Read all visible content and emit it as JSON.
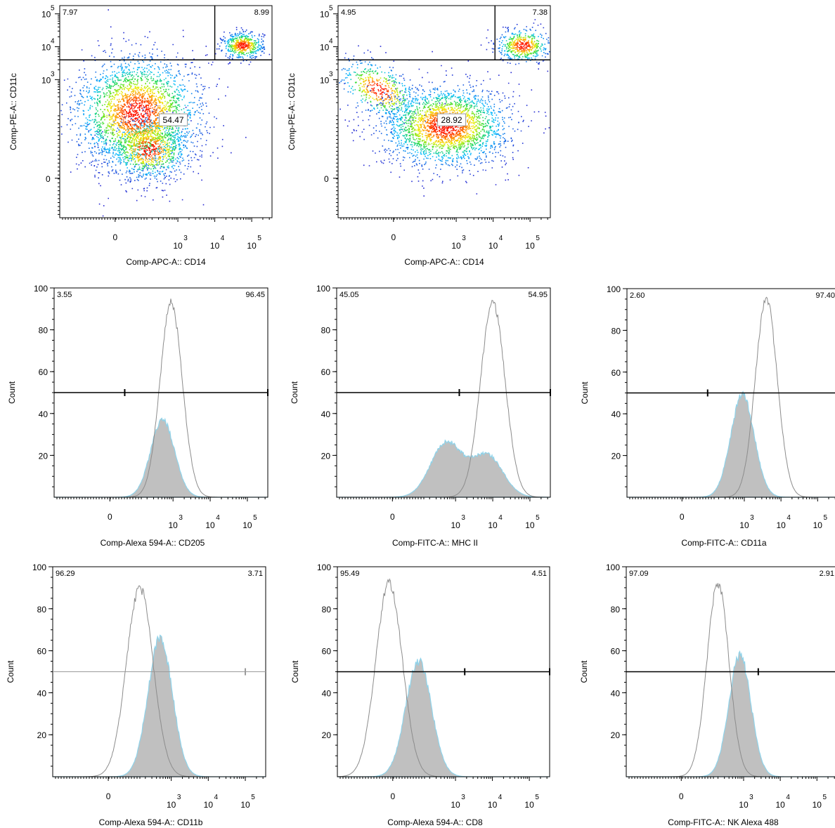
{
  "colors": {
    "frame": "#000000",
    "overlay_fill": "#c0c0c0",
    "overlay_edge": "#8fd3ea",
    "control_line": "#8c8c8c",
    "gate_line": "#000000",
    "density_low": "#1f1fd0",
    "density_mid": "#00d0ff",
    "density_high": "#ff2000"
  },
  "chart_data": [
    {
      "id": "p1",
      "type": "scatter",
      "ylabel": "Comp-PE-A:: CD11c",
      "xlabel": "Comp-APC-A:: CD14",
      "x_ticks": [
        {
          "m": "0",
          "e": ""
        },
        {
          "m": "10",
          "e": "3"
        },
        {
          "m": "10",
          "e": "4"
        },
        {
          "m": "10",
          "e": "5"
        }
      ],
      "y_ticks": [
        {
          "m": "0",
          "e": ""
        },
        {
          "m": "10",
          "e": "3"
        },
        {
          "m": "10",
          "e": "4"
        },
        {
          "m": "10",
          "e": "5"
        }
      ],
      "quadrant_labels": [
        "7.97",
        "8.99"
      ],
      "gate_value": "54.47",
      "gate_x": 4.0,
      "gate_y": 3.6,
      "populations": [
        {
          "cx": 1.9,
          "cy": 2.0,
          "sx": 0.85,
          "sy": 0.85,
          "n": 2600,
          "rot": 40
        },
        {
          "cx": 2.2,
          "cy": 0.9,
          "sx": 0.55,
          "sy": 0.45,
          "n": 900,
          "rot": 0
        },
        {
          "cx": 4.75,
          "cy": 4.05,
          "sx": 0.28,
          "sy": 0.2,
          "n": 500,
          "rot": 0
        }
      ]
    },
    {
      "id": "p2",
      "type": "scatter",
      "ylabel": "Comp-PE-A:: CD11c",
      "xlabel": "Comp-APC-A:: CD14",
      "x_ticks": [
        {
          "m": "0",
          "e": ""
        },
        {
          "m": "10",
          "e": "3"
        },
        {
          "m": "10",
          "e": "4"
        },
        {
          "m": "10",
          "e": "5"
        }
      ],
      "y_ticks": [
        {
          "m": "0",
          "e": ""
        },
        {
          "m": "10",
          "e": "3"
        },
        {
          "m": "10",
          "e": "4"
        },
        {
          "m": "10",
          "e": "5"
        }
      ],
      "quadrant_labels": [
        "4.95",
        "7.38"
      ],
      "gate_value": "28.92",
      "gate_x": 4.05,
      "gate_y": 3.6,
      "populations": [
        {
          "cx": 2.7,
          "cy": 1.6,
          "sx": 0.85,
          "sy": 0.6,
          "n": 2400,
          "rot": 0
        },
        {
          "cx": 0.9,
          "cy": 2.7,
          "sx": 0.6,
          "sy": 0.35,
          "n": 500,
          "rot": -35
        },
        {
          "cx": 4.8,
          "cy": 4.05,
          "sx": 0.35,
          "sy": 0.25,
          "n": 500,
          "rot": 0
        }
      ]
    },
    {
      "id": "h1",
      "type": "area",
      "ylabel": "Count",
      "xlabel": "Comp-Alexa 594-A:: CD205",
      "y_ticks": [
        20,
        40,
        60,
        80,
        100
      ],
      "x_ticks": [
        {
          "m": "0",
          "e": ""
        },
        {
          "m": "10",
          "e": "3"
        },
        {
          "m": "10",
          "e": "4"
        },
        {
          "m": "10",
          "e": "5"
        }
      ],
      "region_labels": [
        "3.55",
        "96.45"
      ],
      "gate_y": 50,
      "gate_x": 1.7,
      "control": [
        {
          "mu": 2.95,
          "s": 0.3,
          "h": 93
        }
      ],
      "sample": [
        {
          "mu": 2.72,
          "s": 0.32,
          "h": 37
        }
      ]
    },
    {
      "id": "h2",
      "type": "area",
      "ylabel": "Count",
      "xlabel": "Comp-FITC-A:: MHC II",
      "y_ticks": [
        20,
        40,
        60,
        80,
        100
      ],
      "x_ticks": [
        {
          "m": "0",
          "e": ""
        },
        {
          "m": "10",
          "e": "3"
        },
        {
          "m": "10",
          "e": "4"
        },
        {
          "m": "10",
          "e": "5"
        }
      ],
      "region_labels": [
        "45.05",
        "54.95"
      ],
      "gate_y": 50,
      "gate_x": 3.1,
      "control": [
        {
          "mu": 4.0,
          "s": 0.33,
          "h": 93
        }
      ],
      "sample": [
        {
          "mu": 2.75,
          "s": 0.42,
          "h": 26
        },
        {
          "mu": 3.85,
          "s": 0.42,
          "h": 20
        }
      ]
    },
    {
      "id": "h3",
      "type": "area",
      "ylabel": "Count",
      "xlabel": "Comp-FITC-A:: CD11a",
      "y_ticks": [
        20,
        40,
        60,
        80,
        100
      ],
      "x_ticks": [
        {
          "m": "0",
          "e": ""
        },
        {
          "m": "10",
          "e": "3"
        },
        {
          "m": "10",
          "e": "4"
        },
        {
          "m": "10",
          "e": "5"
        }
      ],
      "region_labels": [
        "2.60",
        "97.40"
      ],
      "gate_y": 50,
      "gate_x": 2.0,
      "control": [
        {
          "mu": 3.6,
          "s": 0.3,
          "h": 95
        }
      ],
      "sample": [
        {
          "mu": 2.95,
          "s": 0.32,
          "h": 49
        }
      ]
    },
    {
      "id": "h4",
      "type": "area",
      "ylabel": "Count",
      "xlabel": "Comp-Alexa 594-A:: CD11b",
      "y_ticks": [
        20,
        40,
        60,
        80,
        100
      ],
      "x_ticks": [
        {
          "m": "0",
          "e": ""
        },
        {
          "m": "10",
          "e": "3"
        },
        {
          "m": "10",
          "e": "4"
        },
        {
          "m": "10",
          "e": "5"
        }
      ],
      "region_labels": [
        "96.29",
        "3.71"
      ],
      "gate_y": 50,
      "gate_x": 5.0,
      "control": [
        {
          "mu": 2.15,
          "s": 0.36,
          "h": 90
        }
      ],
      "sample": [
        {
          "mu": 2.7,
          "s": 0.33,
          "h": 66
        }
      ]
    },
    {
      "id": "h5",
      "type": "area",
      "ylabel": "Count",
      "xlabel": "Comp-Alexa 594-A:: CD8",
      "y_ticks": [
        20,
        40,
        60,
        80,
        100
      ],
      "x_ticks": [
        {
          "m": "0",
          "e": ""
        },
        {
          "m": "10",
          "e": "3"
        },
        {
          "m": "10",
          "e": "4"
        },
        {
          "m": "10",
          "e": "5"
        }
      ],
      "region_labels": [
        "95.49",
        "4.51"
      ],
      "gate_y": 50,
      "gate_x": 3.25,
      "control": [
        {
          "mu": 1.2,
          "s": 0.36,
          "h": 92
        }
      ],
      "sample": [
        {
          "mu": 2.0,
          "s": 0.35,
          "h": 55
        }
      ]
    },
    {
      "id": "h6",
      "type": "area",
      "ylabel": "Count",
      "xlabel": "Comp-FITC-A:: NK Alexa 488",
      "y_ticks": [
        20,
        40,
        60,
        80,
        100
      ],
      "x_ticks": [
        {
          "m": "0",
          "e": ""
        },
        {
          "m": "10",
          "e": "3"
        },
        {
          "m": "10",
          "e": "4"
        },
        {
          "m": "10",
          "e": "5"
        }
      ],
      "region_labels": [
        "97.09",
        "2.91"
      ],
      "gate_y": 50,
      "gate_x": 3.4,
      "control": [
        {
          "mu": 2.3,
          "s": 0.3,
          "h": 92
        }
      ],
      "sample": [
        {
          "mu": 2.9,
          "s": 0.3,
          "h": 58
        }
      ]
    }
  ]
}
